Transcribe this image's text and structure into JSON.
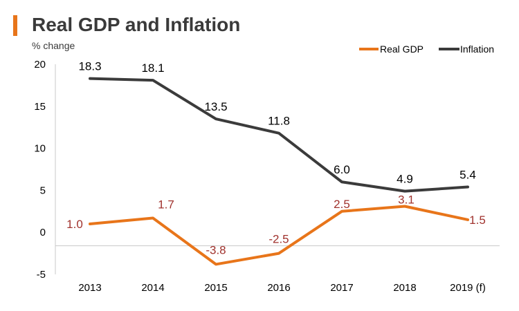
{
  "chart_data": {
    "type": "line",
    "title": "Real GDP and Inflation",
    "subtitle": "% change",
    "categories": [
      "2013",
      "2014",
      "2015",
      "2016",
      "2017",
      "2018",
      "2019 (f)"
    ],
    "ylim": [
      -5,
      20
    ],
    "yticks": [
      -5,
      0,
      5,
      10,
      15,
      20
    ],
    "legend_position": "top-right",
    "series": [
      {
        "name": "Real GDP",
        "color": "#e8751a",
        "label_color": "#a0322d",
        "values": [
          1.0,
          1.7,
          -3.8,
          -2.5,
          2.5,
          3.1,
          1.5
        ],
        "labels": [
          "1.0",
          "1.7",
          "-3.8",
          "-2.5",
          "2.5",
          "3.1",
          "1.5"
        ]
      },
      {
        "name": "Inflation",
        "color": "#3b3b3b",
        "label_color": "#000000",
        "values": [
          18.3,
          18.1,
          13.5,
          11.8,
          6.0,
          4.9,
          5.4
        ],
        "labels": [
          "18.3",
          "18.1",
          "13.5",
          "11.8",
          "6.0",
          "4.9",
          "5.4"
        ]
      }
    ]
  }
}
